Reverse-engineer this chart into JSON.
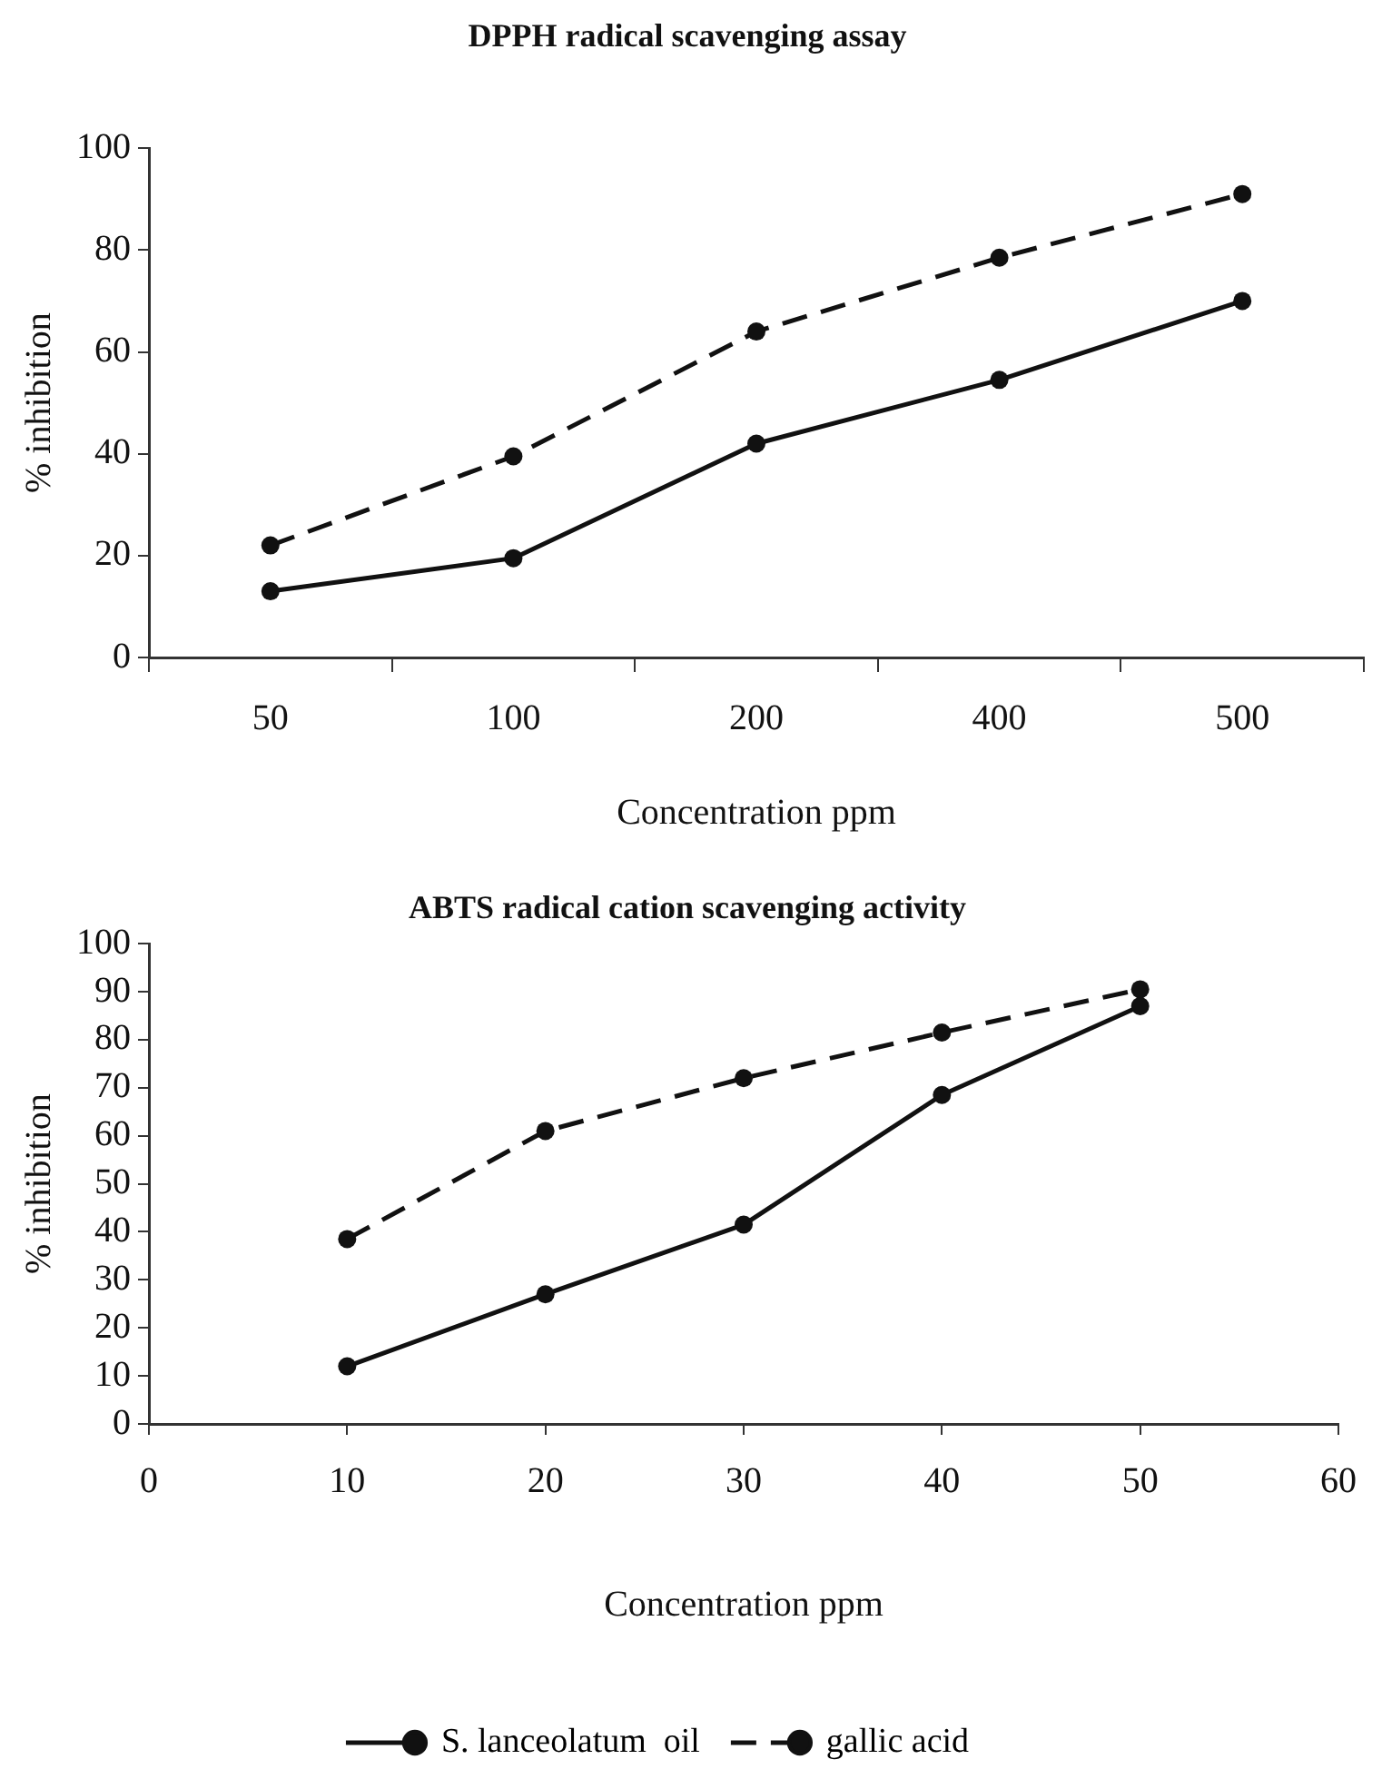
{
  "chart_data": [
    {
      "type": "line",
      "title": "DPPH radical scavenging assay",
      "xlabel": "Concentration ppm",
      "ylabel": "% inhibition",
      "categories": [
        "50",
        "100",
        "200",
        "400",
        "500"
      ],
      "series": [
        {
          "color": "#111111",
          "line_style": "solid",
          "values": [
            13,
            19.5,
            42,
            54.5,
            70
          ]
        },
        {
          "color": "#111111",
          "line_style": "dashed",
          "values": [
            22,
            39.5,
            64,
            78.5,
            91
          ]
        }
      ],
      "ylim": [
        0,
        100
      ],
      "yticks": [
        0,
        20,
        40,
        60,
        80,
        100
      ],
      "grid": false,
      "legend": false,
      "marker": "circle"
    },
    {
      "type": "line",
      "title": "ABTS radical cation scavenging activity",
      "xlabel": "Concentration ppm",
      "ylabel": "% inhibition",
      "x": [
        10,
        20,
        30,
        40,
        50
      ],
      "series": [
        {
          "name": "S. lanceolatum  oil",
          "color": "#111111",
          "line_style": "solid",
          "values": [
            12,
            27,
            41.5,
            68.5,
            87
          ]
        },
        {
          "name": "gallic acid",
          "color": "#111111",
          "line_style": "dashed",
          "values": [
            38.5,
            61,
            72,
            81.5,
            90.5
          ]
        }
      ],
      "xlim": [
        0,
        60
      ],
      "xticks": [
        0,
        10,
        20,
        30,
        40,
        50,
        60
      ],
      "ylim": [
        0,
        100
      ],
      "yticks": [
        0,
        10,
        20,
        30,
        40,
        50,
        60,
        70,
        80,
        90,
        100
      ],
      "grid": false,
      "legend": "bottom",
      "marker": "circle"
    }
  ]
}
